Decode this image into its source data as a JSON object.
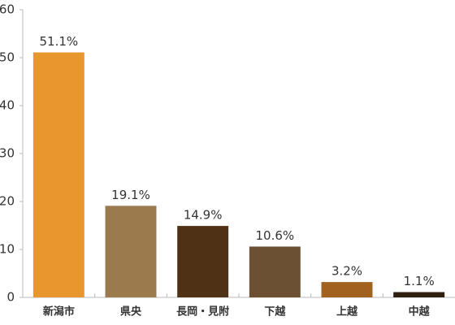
{
  "chart_data": {
    "type": "bar",
    "categories": [
      "新潟市",
      "県央",
      "長岡・見附",
      "下越",
      "上越",
      "中越"
    ],
    "values": [
      51.1,
      19.1,
      14.9,
      10.6,
      3.2,
      1.1
    ],
    "value_labels": [
      "51.1%",
      "19.1%",
      "14.9%",
      "10.6%",
      "3.2%",
      "1.1%"
    ],
    "colors": [
      "#e8962e",
      "#9b7a4e",
      "#4f3215",
      "#6b5034",
      "#a0621e",
      "#2e1f10"
    ],
    "ylim": [
      0,
      60
    ],
    "yticks": [
      0,
      10,
      20,
      30,
      40,
      50,
      60
    ]
  }
}
